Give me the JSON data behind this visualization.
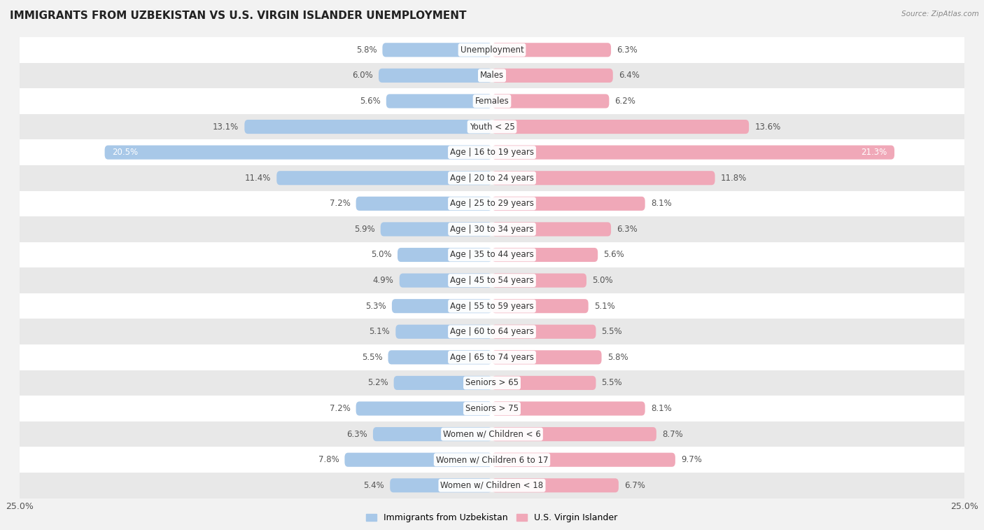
{
  "title": "IMMIGRANTS FROM UZBEKISTAN VS U.S. VIRGIN ISLANDER UNEMPLOYMENT",
  "source": "Source: ZipAtlas.com",
  "categories": [
    "Unemployment",
    "Males",
    "Females",
    "Youth < 25",
    "Age | 16 to 19 years",
    "Age | 20 to 24 years",
    "Age | 25 to 29 years",
    "Age | 30 to 34 years",
    "Age | 35 to 44 years",
    "Age | 45 to 54 years",
    "Age | 55 to 59 years",
    "Age | 60 to 64 years",
    "Age | 65 to 74 years",
    "Seniors > 65",
    "Seniors > 75",
    "Women w/ Children < 6",
    "Women w/ Children 6 to 17",
    "Women w/ Children < 18"
  ],
  "left_values": [
    5.8,
    6.0,
    5.6,
    13.1,
    20.5,
    11.4,
    7.2,
    5.9,
    5.0,
    4.9,
    5.3,
    5.1,
    5.5,
    5.2,
    7.2,
    6.3,
    7.8,
    5.4
  ],
  "right_values": [
    6.3,
    6.4,
    6.2,
    13.6,
    21.3,
    11.8,
    8.1,
    6.3,
    5.6,
    5.0,
    5.1,
    5.5,
    5.8,
    5.5,
    8.1,
    8.7,
    9.7,
    6.7
  ],
  "left_color": "#a8c8e8",
  "right_color": "#f0a8b8",
  "left_label": "Immigrants from Uzbekistan",
  "right_label": "U.S. Virgin Islander",
  "bg_color": "#f2f2f2",
  "row_color_light": "#ffffff",
  "row_color_dark": "#e8e8e8",
  "xlim": 25.0,
  "title_fontsize": 11,
  "label_fontsize": 8.5,
  "value_fontsize": 8.5,
  "bar_height": 0.55
}
